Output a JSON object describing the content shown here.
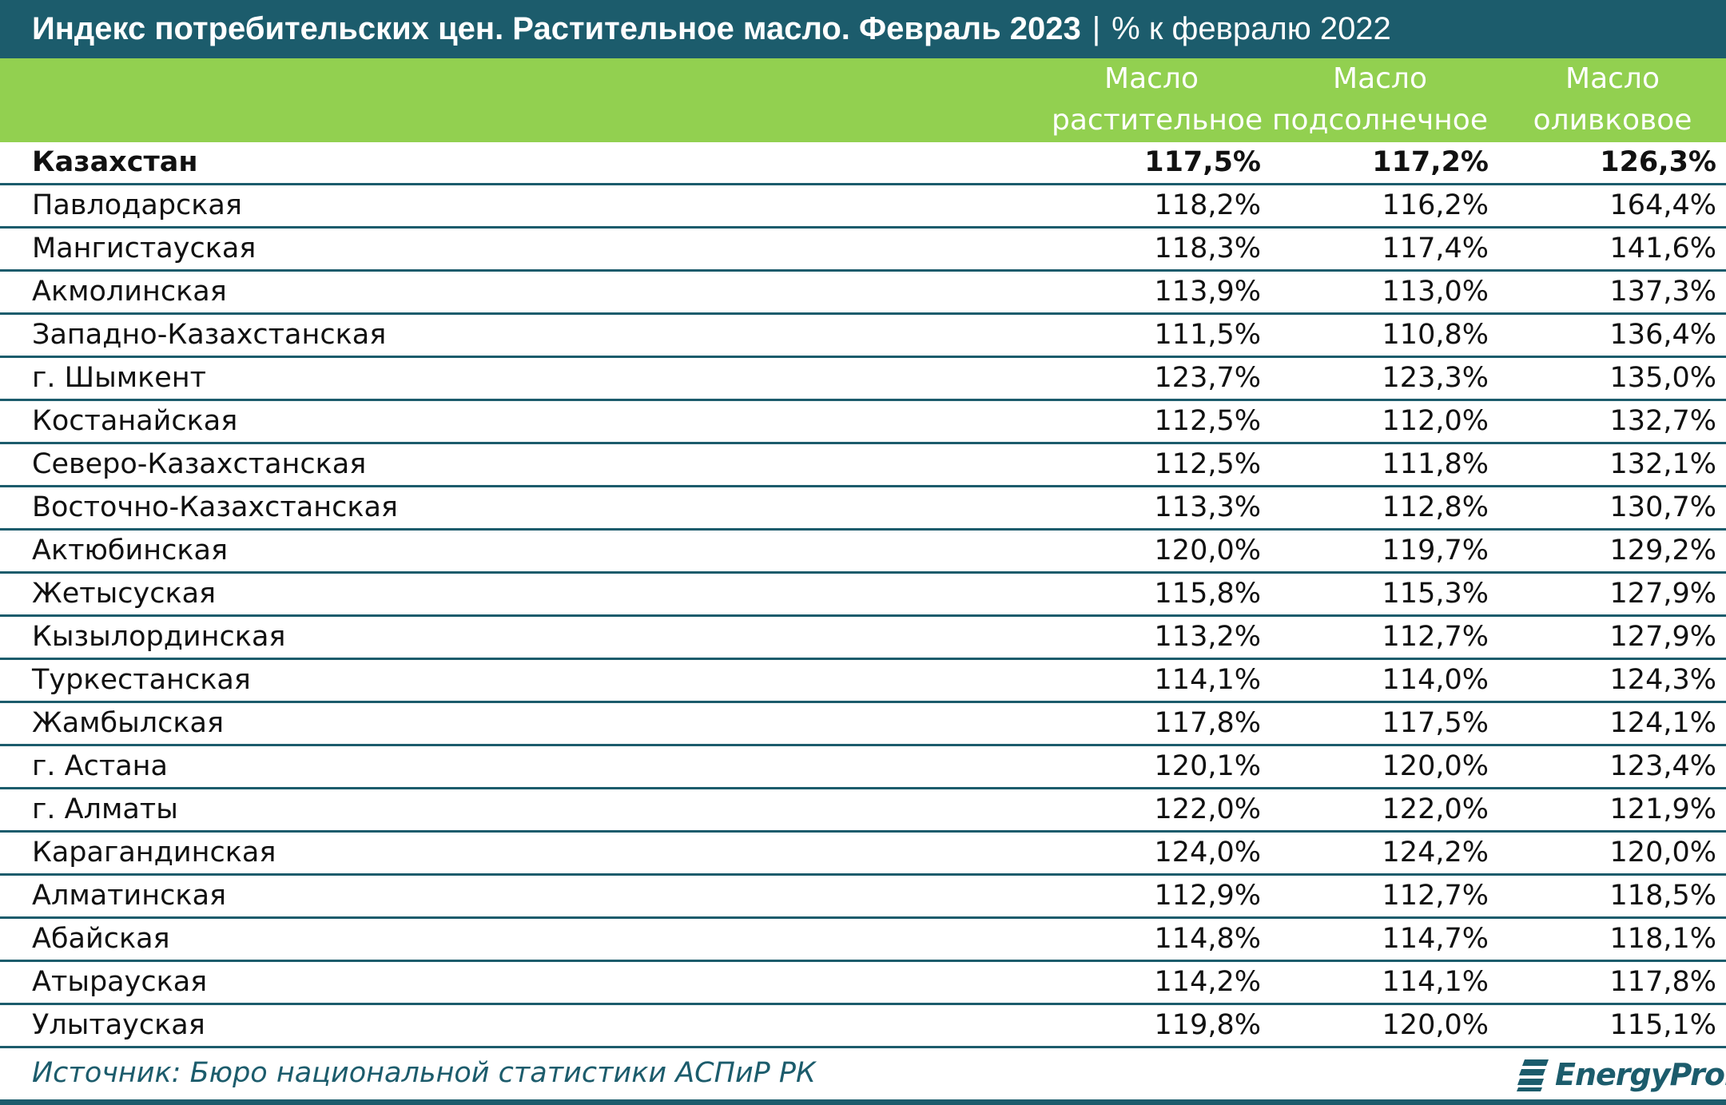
{
  "title": {
    "main": "Индекс потребительских цен. Растительное масло. Февраль 2023",
    "separator": "|",
    "unit": "% к февралю 2022"
  },
  "columns": [
    {
      "line1": "Масло",
      "line2": "растительное"
    },
    {
      "line1": "Масло",
      "line2": "подсолнечное"
    },
    {
      "line1": "Масло",
      "line2": "оливковое"
    }
  ],
  "rows": [
    {
      "name": "Казахстан",
      "v": [
        "117,5%",
        "117,2%",
        "126,3%"
      ]
    },
    {
      "name": "Павлодарская",
      "v": [
        "118,2%",
        "116,2%",
        "164,4%"
      ]
    },
    {
      "name": "Мангистауская",
      "v": [
        "118,3%",
        "117,4%",
        "141,6%"
      ]
    },
    {
      "name": "Акмолинская",
      "v": [
        "113,9%",
        "113,0%",
        "137,3%"
      ]
    },
    {
      "name": "Западно-Казахстанская",
      "v": [
        "111,5%",
        "110,8%",
        "136,4%"
      ]
    },
    {
      "name": "г. Шымкент",
      "v": [
        "123,7%",
        "123,3%",
        "135,0%"
      ]
    },
    {
      "name": "Костанайская",
      "v": [
        "112,5%",
        "112,0%",
        "132,7%"
      ]
    },
    {
      "name": "Северо-Казахстанская",
      "v": [
        "112,5%",
        "111,8%",
        "132,1%"
      ]
    },
    {
      "name": "Восточно-Казахстанская",
      "v": [
        "113,3%",
        "112,8%",
        "130,7%"
      ]
    },
    {
      "name": "Актюбинская",
      "v": [
        "120,0%",
        "119,7%",
        "129,2%"
      ]
    },
    {
      "name": "Жетысуская",
      "v": [
        "115,8%",
        "115,3%",
        "127,9%"
      ]
    },
    {
      "name": "Кызылординская",
      "v": [
        "113,2%",
        "112,7%",
        "127,9%"
      ]
    },
    {
      "name": "Туркестанская",
      "v": [
        "114,1%",
        "114,0%",
        "124,3%"
      ]
    },
    {
      "name": "Жамбылская",
      "v": [
        "117,8%",
        "117,5%",
        "124,1%"
      ]
    },
    {
      "name": "г. Астана",
      "v": [
        "120,1%",
        "120,0%",
        "123,4%"
      ]
    },
    {
      "name": "г. Алматы",
      "v": [
        "122,0%",
        "122,0%",
        "121,9%"
      ]
    },
    {
      "name": "Карагандинская",
      "v": [
        "124,0%",
        "124,2%",
        "120,0%"
      ]
    },
    {
      "name": "Алматинская",
      "v": [
        "112,9%",
        "112,7%",
        "118,5%"
      ]
    },
    {
      "name": "Абайская",
      "v": [
        "114,8%",
        "114,7%",
        "118,1%"
      ]
    },
    {
      "name": "Атырауская",
      "v": [
        "114,2%",
        "114,1%",
        "117,8%"
      ]
    },
    {
      "name": "Улытауская",
      "v": [
        "119,8%",
        "120,0%",
        "115,1%"
      ]
    }
  ],
  "footer": {
    "source": "Источник: Бюро национальной статистики АСПиР РК",
    "logo_text": "EnergyProm",
    "logo_icon": "energyprom-logo-icon"
  },
  "colors": {
    "title_bg": "#1c5c6c",
    "header_bg": "#92d050",
    "header_text": "#ffffff",
    "row_divider": "#1c5c6c"
  },
  "chart_data": {
    "type": "table",
    "title": "Индекс потребительских цен. Растительное масло. Февраль 2023 | % к февралю 2022",
    "columns": [
      "Масло растительное",
      "Масло подсолнечное",
      "Масло оливковое"
    ],
    "categories": [
      "Казахстан",
      "Павлодарская",
      "Мангистауская",
      "Акмолинская",
      "Западно-Казахстанская",
      "г. Шымкент",
      "Костанайская",
      "Северо-Казахстанская",
      "Восточно-Казахстанская",
      "Актюбинская",
      "Жетысуская",
      "Кызылординская",
      "Туркестанская",
      "Жамбылская",
      "г. Астана",
      "г. Алматы",
      "Карагандинская",
      "Алматинская",
      "Абайская",
      "Атырауская",
      "Улытауская"
    ],
    "series": [
      {
        "name": "Масло растительное",
        "values": [
          117.5,
          118.2,
          118.3,
          113.9,
          111.5,
          123.7,
          112.5,
          112.5,
          113.3,
          120.0,
          115.8,
          113.2,
          114.1,
          117.8,
          120.1,
          122.0,
          124.0,
          112.9,
          114.8,
          114.2,
          119.8
        ]
      },
      {
        "name": "Масло подсолнечное",
        "values": [
          117.2,
          116.2,
          117.4,
          113.0,
          110.8,
          123.3,
          112.0,
          111.8,
          112.8,
          119.7,
          115.3,
          112.7,
          114.0,
          117.5,
          120.0,
          122.0,
          124.2,
          112.7,
          114.7,
          114.1,
          120.0
        ]
      },
      {
        "name": "Масло оливковое",
        "values": [
          126.3,
          164.4,
          141.6,
          137.3,
          136.4,
          135.0,
          132.7,
          132.1,
          130.7,
          129.2,
          127.9,
          127.9,
          124.3,
          124.1,
          123.4,
          121.9,
          120.0,
          118.5,
          118.1,
          117.8,
          115.1
        ]
      }
    ]
  }
}
